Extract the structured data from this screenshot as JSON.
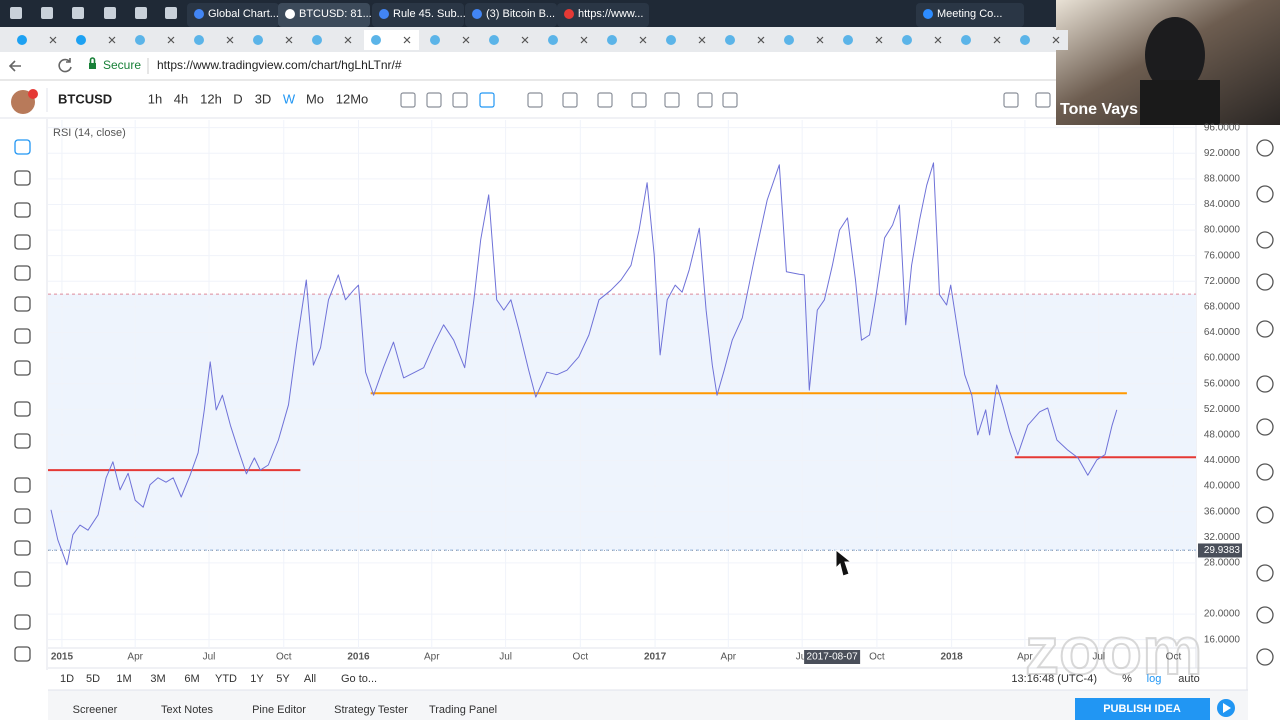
{
  "browser": {
    "tabs": [
      "Global Chart...",
      "BTCUSD: 81...",
      "Rule 45. Sub...",
      "(3) Bitcoin B...",
      "https://www...",
      "Meeting Co..."
    ],
    "address": {
      "secure": "Secure",
      "url": "https://www.tradingview.com/chart/hgLhLTnr/#"
    }
  },
  "toolbar": {
    "symbol": "BTCUSD",
    "intervals": [
      "1h",
      "4h",
      "12h",
      "D",
      "3D",
      "W",
      "Mo",
      "12Mo"
    ]
  },
  "chart_data": {
    "type": "line",
    "x": [
      2014.963,
      2014.986,
      2015.017,
      2015.037,
      2015.061,
      2015.088,
      2015.122,
      2015.149,
      2015.172,
      2015.196,
      2015.223,
      2015.247,
      2015.274,
      2015.297,
      2015.324,
      2015.351,
      2015.375,
      2015.402,
      2015.432,
      2015.459,
      2015.48,
      2015.5,
      2015.52,
      2015.541,
      2015.568,
      2015.595,
      2015.622,
      2015.649,
      2015.669,
      2015.696,
      2015.73,
      2015.764,
      2015.791,
      2015.824,
      2015.848,
      2015.872,
      2015.899,
      2015.932,
      2015.956,
      2015.983,
      2016.0,
      2016.024,
      2016.051,
      2016.084,
      2016.118,
      2016.152,
      2016.186,
      2016.22,
      2016.253,
      2016.287,
      2016.321,
      2016.358,
      2016.389,
      2016.412,
      2016.439,
      2016.466,
      2016.49,
      2016.514,
      2016.541,
      2016.574,
      2016.598,
      2016.635,
      2016.669,
      2016.703,
      2016.743,
      2016.777,
      2016.811,
      2016.851,
      2016.885,
      2016.919,
      2016.946,
      2016.973,
      2016.997,
      2017.017,
      2017.041,
      2017.068,
      2017.091,
      2017.115,
      2017.149,
      2017.172,
      2017.193,
      2017.209,
      2017.233,
      2017.26,
      2017.294,
      2017.334,
      2017.378,
      2017.419,
      2017.443,
      2017.486,
      2017.503,
      2017.52,
      2017.547,
      2017.571,
      2017.598,
      2017.622,
      2017.649,
      2017.676,
      2017.696,
      2017.723,
      2017.743,
      2017.774,
      2017.801,
      2017.824,
      2017.845,
      2017.865,
      2017.892,
      2017.916,
      2017.939,
      2017.959,
      2017.983,
      2017.997,
      2018.02,
      2018.044,
      2018.068,
      2018.088,
      2018.115,
      2018.128,
      2018.152,
      2018.172,
      2018.196,
      2018.223,
      2018.257,
      2018.297,
      2018.324,
      2018.355,
      2018.392,
      2018.426,
      2018.459,
      2018.49,
      2018.517,
      2018.541,
      2018.557
    ],
    "series": [
      {
        "name": "RSI (14, close)",
        "color": "#6f72d8",
        "values": [
          36.3,
          31.6,
          27.7,
          32.4,
          33.9,
          33.1,
          35.5,
          41.3,
          43.8,
          39.4,
          42.0,
          37.8,
          36.7,
          40.2,
          41.3,
          40.6,
          41.3,
          38.3,
          41.7,
          45.2,
          51.9,
          59.4,
          51.9,
          54.2,
          49.5,
          45.6,
          41.9,
          44.4,
          42.5,
          43.3,
          47.2,
          52.7,
          62.0,
          72.2,
          58.9,
          61.6,
          69.1,
          73.0,
          69.1,
          70.6,
          71.4,
          57.8,
          54.2,
          58.5,
          62.5,
          56.9,
          57.7,
          58.5,
          62.0,
          65.2,
          62.8,
          58.5,
          69.1,
          78.5,
          85.5,
          69.1,
          67.5,
          69.1,
          64.4,
          58.1,
          53.9,
          57.8,
          57.4,
          58.1,
          60.2,
          63.6,
          69.1,
          70.6,
          72.2,
          74.5,
          80.0,
          87.4,
          76.1,
          60.5,
          69.1,
          71.4,
          70.3,
          73.8,
          80.3,
          67.5,
          58.9,
          54.2,
          58.1,
          62.8,
          66.3,
          75.3,
          84.7,
          90.2,
          73.5,
          73.1,
          73.0,
          55.0,
          67.5,
          69.1,
          74.5,
          80.0,
          81.9,
          72.2,
          62.8,
          63.6,
          69.1,
          78.8,
          80.8,
          83.9,
          65.2,
          74.5,
          81.6,
          87.0,
          90.5,
          69.9,
          68.3,
          71.4,
          64.4,
          57.4,
          54.2,
          48.0,
          51.9,
          48.0,
          55.8,
          52.7,
          48.5,
          44.9,
          49.5,
          51.6,
          52.2,
          47.2,
          45.6,
          44.4,
          41.7,
          44.1,
          44.9,
          49.5,
          51.9
        ]
      }
    ],
    "xlim": [
      2014.953,
      2018.824
    ],
    "ylim": [
      14.7,
      97.2
    ],
    "xticks": [
      2015,
      {
        "value": 2015.247,
        "label": "Apr"
      },
      {
        "value": 2015.496,
        "label": "Jul"
      },
      {
        "value": 2015.748,
        "label": "Oct"
      },
      2016,
      {
        "value": 2016.247,
        "label": "Apr"
      },
      {
        "value": 2016.496,
        "label": "Jul"
      },
      {
        "value": 2016.748,
        "label": "Oct"
      },
      2017,
      {
        "value": 2017.247,
        "label": "Apr"
      },
      {
        "value": 2017.496,
        "label": "Jul"
      },
      {
        "value": 2017.748,
        "label": "Oct"
      },
      2018,
      {
        "value": 2018.247,
        "label": "Apr"
      },
      {
        "value": 2018.496,
        "label": "Jul"
      },
      {
        "value": 2018.748,
        "label": "Oct"
      }
    ],
    "yticks": [
      {
        "value": 96,
        "label": "96.0000"
      },
      {
        "value": 92,
        "label": "92.0000"
      },
      {
        "value": 88,
        "label": "88.0000"
      },
      {
        "value": 84,
        "label": "84.0000"
      },
      {
        "value": 80,
        "label": "80.0000"
      },
      {
        "value": 76,
        "label": "76.0000"
      },
      {
        "value": 72,
        "label": "72.0000"
      },
      {
        "value": 68,
        "label": "68.0000"
      },
      {
        "value": 64,
        "label": "64.0000"
      },
      {
        "value": 60,
        "label": "60.0000"
      },
      {
        "value": 56,
        "label": "56.0000"
      },
      {
        "value": 52,
        "label": "52.0000"
      },
      {
        "value": 48,
        "label": "48.0000"
      },
      {
        "value": 44,
        "label": "44.0000"
      },
      {
        "value": 40,
        "label": "40.0000"
      },
      {
        "value": 36,
        "label": "36.0000"
      },
      {
        "value": 32,
        "label": "32.0000"
      },
      {
        "value": 28,
        "label": "28.0000"
      },
      {
        "value": 20,
        "label": "20.0000"
      },
      {
        "value": 16,
        "label": "16.0000"
      }
    ],
    "grid": true,
    "bands": {
      "upper": 70,
      "lower": 30,
      "fill": "#eef4fd",
      "upper_color": "#e08a9a",
      "lower_color": "#8fb0d8"
    },
    "drawings": [
      {
        "color": "#e53935",
        "value": 42.5,
        "x": [
          2014.953,
          2015.804
        ]
      },
      {
        "color": "#ff9800",
        "value": 54.5,
        "x": [
          2016.041,
          2018.591
        ]
      },
      {
        "color": "#e53935",
        "value": 44.5,
        "x": [
          2018.213,
          2018.824
        ]
      }
    ],
    "crosshair": {
      "x": {
        "value": 2017.597,
        "label": "2017-08-07"
      },
      "y": 29.9383
    }
  },
  "bottom_bar": {
    "ranges": [
      "1D",
      "5D",
      "1M",
      "3M",
      "6M",
      "YTD",
      "1Y",
      "5Y",
      "All"
    ],
    "goto": "Go to...",
    "clock": "13:16:48 (UTC-4)",
    "scale_options": [
      "%",
      "log",
      "auto"
    ]
  },
  "panel_tabs": [
    "Screener",
    "Text Notes",
    "Pine Editor",
    "Strategy Tester",
    "Trading Panel"
  ],
  "publish": "PUBLISH IDEA",
  "webcam": {
    "name": "Tone Vays"
  },
  "watermark": "zoom"
}
